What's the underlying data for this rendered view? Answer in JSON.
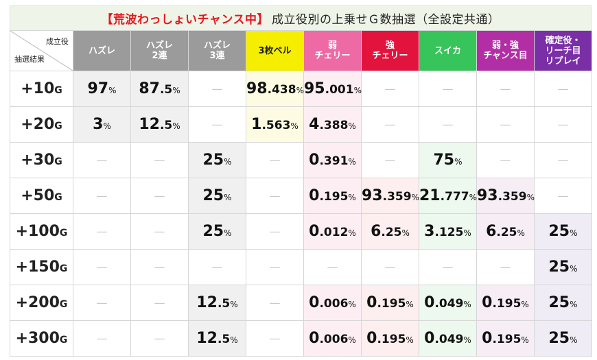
{
  "title": {
    "highlight": "【荒波わっしょいチャンス中】",
    "rest": "成立役別の上乗せＧ数抽選（全設定共通）"
  },
  "corner": {
    "top_right": "成立役",
    "bottom_left": "抽選結果"
  },
  "columns": [
    {
      "line1": "ハズレ",
      "line2": "",
      "bg": "#9b9b9b",
      "fg": "#ffffff",
      "cell_bg": "#f0f0f0"
    },
    {
      "line1": "ハズレ",
      "line2": "2連",
      "bg": "#9b9b9b",
      "fg": "#ffffff",
      "cell_bg": "#f0f0f0"
    },
    {
      "line1": "ハズレ",
      "line2": "3連",
      "bg": "#9b9b9b",
      "fg": "#ffffff",
      "cell_bg": "#f0f0f0"
    },
    {
      "line1": "3枚ベル",
      "line2": "",
      "bg": "#f5ee00",
      "fg": "#222222",
      "cell_bg": "#fdfce3"
    },
    {
      "line1": "弱",
      "line2": "チェリー",
      "bg": "#ee6aa5",
      "fg": "#ffffff",
      "cell_bg": "#fdeef4"
    },
    {
      "line1": "強",
      "line2": "チェリー",
      "bg": "#e2133c",
      "fg": "#ffffff",
      "cell_bg": "#fdeeef"
    },
    {
      "line1": "スイカ",
      "line2": "",
      "bg": "#37c45a",
      "fg": "#ffffff",
      "cell_bg": "#edf8ee"
    },
    {
      "line1": "弱・強",
      "line2": "チャンス目",
      "bg": "#b12ea5",
      "fg": "#ffffff",
      "cell_bg": "#f6edf5"
    },
    {
      "line1": "確定役・",
      "line2": "リーチ目",
      "line3": "リプレイ",
      "bg": "#7a2fa6",
      "fg": "#ffffff",
      "cell_bg": "#efecf6"
    }
  ],
  "rows": [
    {
      "num": "+10",
      "unit": "G",
      "cells": [
        {
          "int": "97",
          "dec": "",
          "pct": "%"
        },
        {
          "int": "87",
          "dec": ".5",
          "pct": "%"
        },
        null,
        {
          "int": "98",
          "dec": ".438",
          "pct": "%"
        },
        {
          "int": "95",
          "dec": ".001",
          "pct": "%"
        },
        null,
        null,
        null,
        null
      ]
    },
    {
      "num": "+20",
      "unit": "G",
      "cells": [
        {
          "int": "3",
          "dec": "",
          "pct": "%"
        },
        {
          "int": "12",
          "dec": ".5",
          "pct": "%"
        },
        null,
        {
          "int": "1",
          "dec": ".563",
          "pct": "%"
        },
        {
          "int": "4",
          "dec": ".388",
          "pct": "%"
        },
        null,
        null,
        null,
        null
      ]
    },
    {
      "num": "+30",
      "unit": "G",
      "cells": [
        null,
        null,
        {
          "int": "25",
          "dec": "",
          "pct": "%"
        },
        null,
        {
          "int": "0",
          "dec": ".391",
          "pct": "%"
        },
        null,
        {
          "int": "75",
          "dec": "",
          "pct": "%"
        },
        null,
        null
      ]
    },
    {
      "num": "+50",
      "unit": "G",
      "cells": [
        null,
        null,
        {
          "int": "25",
          "dec": "",
          "pct": "%"
        },
        null,
        {
          "int": "0",
          "dec": ".195",
          "pct": "%"
        },
        {
          "int": "93",
          "dec": ".359",
          "pct": "%"
        },
        {
          "int": "21",
          "dec": ".777",
          "pct": "%"
        },
        {
          "int": "93",
          "dec": ".359",
          "pct": "%"
        },
        null
      ]
    },
    {
      "num": "+100",
      "unit": "G",
      "cells": [
        null,
        null,
        {
          "int": "25",
          "dec": "",
          "pct": "%"
        },
        null,
        {
          "int": "0",
          "dec": ".012",
          "pct": "%"
        },
        {
          "int": "6",
          "dec": ".25",
          "pct": "%"
        },
        {
          "int": "3",
          "dec": ".125",
          "pct": "%"
        },
        {
          "int": "6",
          "dec": ".25",
          "pct": "%"
        },
        {
          "int": "25",
          "dec": "",
          "pct": "%"
        }
      ]
    },
    {
      "num": "+150",
      "unit": "G",
      "cells": [
        null,
        null,
        null,
        null,
        null,
        null,
        null,
        null,
        {
          "int": "25",
          "dec": "",
          "pct": "%"
        }
      ]
    },
    {
      "num": "+200",
      "unit": "G",
      "cells": [
        null,
        null,
        {
          "int": "12",
          "dec": ".5",
          "pct": "%"
        },
        null,
        {
          "int": "0",
          "dec": ".006",
          "pct": "%"
        },
        {
          "int": "0",
          "dec": ".195",
          "pct": "%"
        },
        {
          "int": "0",
          "dec": ".049",
          "pct": "%"
        },
        {
          "int": "0",
          "dec": ".195",
          "pct": "%"
        },
        {
          "int": "25",
          "dec": "",
          "pct": "%"
        }
      ]
    },
    {
      "num": "+300",
      "unit": "G",
      "cells": [
        null,
        null,
        {
          "int": "12",
          "dec": ".5",
          "pct": "%"
        },
        null,
        {
          "int": "0",
          "dec": ".006",
          "pct": "%"
        },
        {
          "int": "0",
          "dec": ".195",
          "pct": "%"
        },
        {
          "int": "0",
          "dec": ".049",
          "pct": "%"
        },
        {
          "int": "0",
          "dec": ".195",
          "pct": "%"
        },
        {
          "int": "25",
          "dec": "",
          "pct": "%"
        }
      ]
    }
  ],
  "empty_mark": "—"
}
